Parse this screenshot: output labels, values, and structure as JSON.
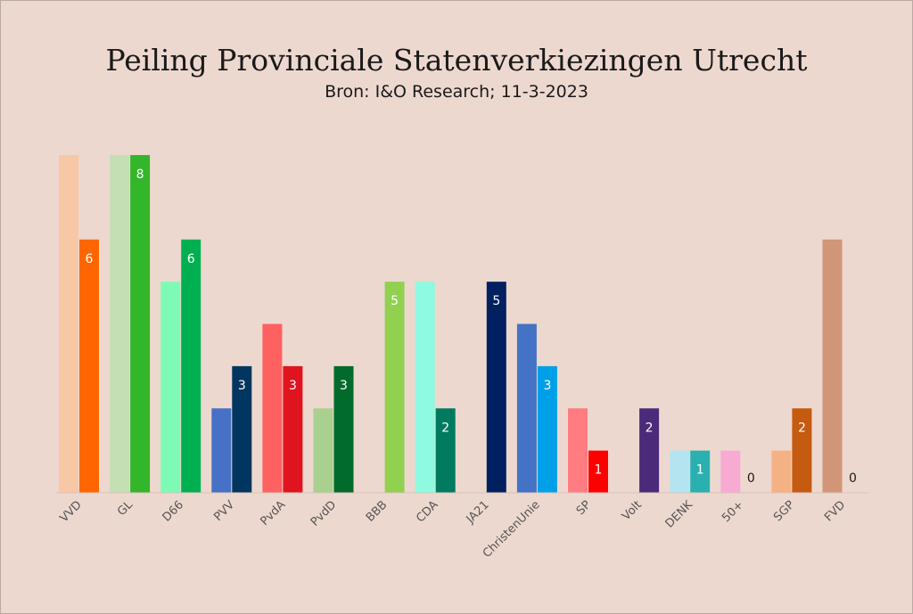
{
  "chart_data": {
    "type": "bar",
    "title": "Peiling Provinciale Statenverkiezingen Utrecht",
    "subtitle": "Bron: I&O Research; 11-3-2023",
    "xlabel": "",
    "ylabel": "",
    "ylim": [
      0,
      8
    ],
    "grid": false,
    "legend": "none",
    "categories": [
      "VVD",
      "GL",
      "D66",
      "PVV",
      "PvdA",
      "PvdD",
      "BBB",
      "CDA",
      "JA21",
      "ChristenUnie",
      "SP",
      "Volt",
      "DENK",
      "50+",
      "SGP",
      "FVD"
    ],
    "series": [
      {
        "values": [
          8,
          8,
          5,
          2,
          4,
          2,
          0,
          5,
          0,
          4,
          2,
          0,
          1,
          1,
          1,
          6
        ]
      },
      {
        "values": [
          6,
          8,
          6,
          3,
          3,
          3,
          5,
          2,
          5,
          3,
          1,
          2,
          1,
          0,
          2,
          0
        ]
      }
    ],
    "data_labels": [
      "6",
      "8",
      "6",
      "3",
      "3",
      "3",
      "5",
      "2",
      "5",
      "3",
      "1",
      "2",
      "1",
      "0",
      "2",
      "0"
    ],
    "colors_previous": [
      "#f7c7a6",
      "#c3dfb3",
      "#7dfbb4",
      "#4671c6",
      "#ff6060",
      "#a9d08e",
      "#92d050",
      "#8ffae0",
      "#002060",
      "#4472c4",
      "#ff7c80",
      "#4b2a7a",
      "#b4e4f0",
      "#f8abd2",
      "#f4b183",
      "#d09677"
    ],
    "colors_current": [
      "#ff6600",
      "#33b62a",
      "#00b050",
      "#00365f",
      "#e0141e",
      "#006b2b",
      "#92d050",
      "#007b5f",
      "#002060",
      "#00a0e9",
      "#ff0000",
      "#4b2a7a",
      "#2ab0b0",
      "#f8abd2",
      "#c55a11",
      "#d09677"
    ],
    "label_colors": [
      "#ffffff",
      "#ffffff",
      "#ffffff",
      "#ffffff",
      "#ffffff",
      "#ffffff",
      "#ffffff",
      "#ffffff",
      "#ffffff",
      "#ffffff",
      "#ffffff",
      "#ffffff",
      "#ffffff",
      "#1a1a1a",
      "#ffffff",
      "#1a1a1a"
    ]
  }
}
